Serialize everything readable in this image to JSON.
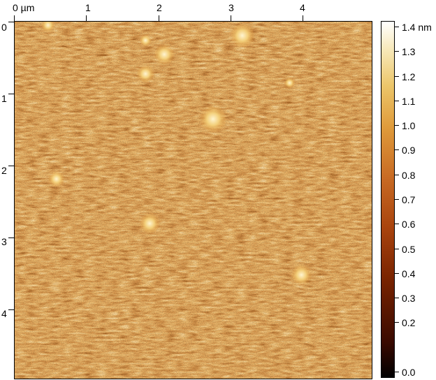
{
  "x_axis": {
    "unit_label": "0 µm",
    "ticks": [
      "1",
      "2",
      "3",
      "4"
    ]
  },
  "y_axis": {
    "ticks": [
      "0",
      "1",
      "2",
      "3",
      "4"
    ]
  },
  "colorbar": {
    "top_label": "1.4 nm",
    "labels": [
      "1.3",
      "1.2",
      "1.1",
      "1.0",
      "0.9",
      "0.8",
      "0.7",
      "0.6",
      "0.5",
      "0.4",
      "0.3",
      "0.2",
      "0.0"
    ],
    "min": 0.0,
    "max": 1.4,
    "unit": "nm"
  },
  "image": {
    "description_colormap": [
      "#000000",
      "#7a2400",
      "#c86a23",
      "#ecc66a",
      "#ffffff"
    ]
  }
}
